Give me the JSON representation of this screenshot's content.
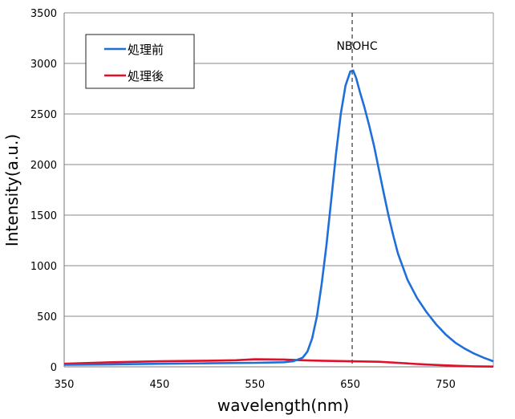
{
  "chart_data": {
    "type": "line",
    "title": "",
    "xlabel": "wavelength(nm)",
    "ylabel": "Intensity(a.u.)",
    "xlim": [
      350,
      800
    ],
    "ylim": [
      0,
      3500
    ],
    "x_ticks": [
      350,
      450,
      550,
      650,
      750
    ],
    "y_ticks": [
      0,
      500,
      1000,
      1500,
      2000,
      2500,
      3000,
      3500
    ],
    "grid": "horizontal",
    "legend_position": "top-left",
    "annotations": [
      {
        "text": "NBOHC",
        "x": 652,
        "style": "dashed-vertical-line"
      }
    ],
    "series": [
      {
        "name": "処理前",
        "color": "#1e6fd9",
        "points": [
          [
            350,
            20
          ],
          [
            400,
            25
          ],
          [
            450,
            30
          ],
          [
            500,
            35
          ],
          [
            550,
            40
          ],
          [
            580,
            45
          ],
          [
            590,
            55
          ],
          [
            600,
            90
          ],
          [
            605,
            150
          ],
          [
            610,
            280
          ],
          [
            615,
            500
          ],
          [
            620,
            820
          ],
          [
            625,
            1200
          ],
          [
            630,
            1650
          ],
          [
            635,
            2100
          ],
          [
            640,
            2500
          ],
          [
            645,
            2780
          ],
          [
            650,
            2920
          ],
          [
            653,
            2930
          ],
          [
            656,
            2860
          ],
          [
            660,
            2720
          ],
          [
            665,
            2560
          ],
          [
            670,
            2380
          ],
          [
            675,
            2180
          ],
          [
            680,
            1950
          ],
          [
            685,
            1720
          ],
          [
            690,
            1500
          ],
          [
            695,
            1300
          ],
          [
            700,
            1120
          ],
          [
            710,
            860
          ],
          [
            720,
            680
          ],
          [
            730,
            540
          ],
          [
            740,
            420
          ],
          [
            750,
            320
          ],
          [
            760,
            240
          ],
          [
            770,
            180
          ],
          [
            780,
            130
          ],
          [
            790,
            90
          ],
          [
            800,
            55
          ]
        ]
      },
      {
        "name": "処理後",
        "color": "#e0102a",
        "points": [
          [
            350,
            30
          ],
          [
            400,
            45
          ],
          [
            450,
            55
          ],
          [
            500,
            60
          ],
          [
            530,
            65
          ],
          [
            550,
            75
          ],
          [
            580,
            72
          ],
          [
            600,
            65
          ],
          [
            620,
            60
          ],
          [
            650,
            55
          ],
          [
            680,
            50
          ],
          [
            700,
            40
          ],
          [
            720,
            28
          ],
          [
            740,
            18
          ],
          [
            760,
            10
          ],
          [
            780,
            5
          ],
          [
            800,
            2
          ]
        ]
      }
    ]
  }
}
